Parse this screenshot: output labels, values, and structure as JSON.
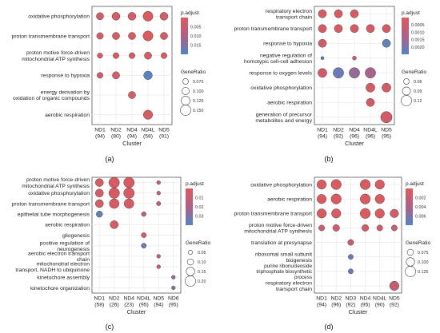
{
  "colors": {
    "high": "#e05a5a",
    "mid": "#b15f86",
    "low": "#4f86c6",
    "grid": "#ebebeb",
    "axis": "#555555"
  },
  "chart_data": [
    {
      "panel_label": "(a)",
      "type": "dot",
      "xlabel": "Cluster",
      "categories": [
        "ND1\n(94)",
        "ND2\n(80)",
        "ND4\n(94)",
        "ND4L\n(58)",
        "ND5\n(91)"
      ],
      "terms": [
        "oxidative phosphorylation",
        "proton transmembrane transport",
        "proton motive force-driven\nmitochondrial ATP synthesis",
        "response to hypoxia",
        "energy derivation by\noxidation of organic compounds",
        "aerobic respiration"
      ],
      "color_legend": {
        "title": "p.adjust",
        "ticks": [
          "0.005",
          "0.010",
          "0.015"
        ],
        "range": [
          0.0,
          0.02
        ]
      },
      "size_legend": {
        "title": "GeneRatio",
        "ticks": [
          "0.075",
          "0.100",
          "0.125",
          "0.150"
        ],
        "values": [
          0.075,
          0.1,
          0.125,
          0.15
        ]
      },
      "points": [
        {
          "x": 0,
          "y": 0,
          "ratio": 0.1,
          "p": 0.002
        },
        {
          "x": 1,
          "y": 0,
          "ratio": 0.11,
          "p": 0.002
        },
        {
          "x": 2,
          "y": 0,
          "ratio": 0.11,
          "p": 0.002
        },
        {
          "x": 3,
          "y": 0,
          "ratio": 0.14,
          "p": 0.001
        },
        {
          "x": 4,
          "y": 0,
          "ratio": 0.11,
          "p": 0.002
        },
        {
          "x": 0,
          "y": 1,
          "ratio": 0.09,
          "p": 0.002
        },
        {
          "x": 1,
          "y": 1,
          "ratio": 0.1,
          "p": 0.002
        },
        {
          "x": 2,
          "y": 1,
          "ratio": 0.1,
          "p": 0.002
        },
        {
          "x": 3,
          "y": 1,
          "ratio": 0.14,
          "p": 0.001
        },
        {
          "x": 4,
          "y": 1,
          "ratio": 0.1,
          "p": 0.002
        },
        {
          "x": 0,
          "y": 2,
          "ratio": 0.07,
          "p": 0.002
        },
        {
          "x": 1,
          "y": 2,
          "ratio": 0.08,
          "p": 0.002
        },
        {
          "x": 2,
          "y": 2,
          "ratio": 0.08,
          "p": 0.002
        },
        {
          "x": 3,
          "y": 2,
          "ratio": 0.1,
          "p": 0.002
        },
        {
          "x": 4,
          "y": 2,
          "ratio": 0.08,
          "p": 0.002
        },
        {
          "x": 0,
          "y": 3,
          "ratio": 0.08,
          "p": 0.004
        },
        {
          "x": 1,
          "y": 3,
          "ratio": 0.1,
          "p": 0.003
        },
        {
          "x": 3,
          "y": 3,
          "ratio": 0.12,
          "p": 0.019
        },
        {
          "x": 2,
          "y": 4,
          "ratio": 0.1,
          "p": 0.003
        },
        {
          "x": 3,
          "y": 5,
          "ratio": 0.13,
          "p": 0.002
        }
      ]
    },
    {
      "panel_label": "(b)",
      "type": "dot",
      "xlabel": "Cluster",
      "categories": [
        "ND1\n(94)",
        "ND2\n(92)",
        "ND4\n(96)",
        "ND4L\n(96)",
        "ND5\n(95)"
      ],
      "terms": [
        "respiratory electron\ntransport chain",
        "proton transmembrane transport",
        "response to hypoxia",
        "negative regulation of\nhomotypic cell-cell adhesion",
        "response to oxygen levels",
        "oxidative phosphorylation",
        "aerobic respiration",
        "generation of precursor\nmetabolites and energy"
      ],
      "color_legend": {
        "title": "p.adjust",
        "ticks": [
          "0.0005",
          "0.0010",
          "0.0015",
          "0.0020"
        ],
        "range": [
          0.0,
          0.0022
        ]
      },
      "size_legend": {
        "title": "GeneRatio",
        "ticks": [
          "0.06",
          "0.09",
          "0.12"
        ],
        "values": [
          0.06,
          0.09,
          0.12
        ]
      },
      "points": [
        {
          "x": 0,
          "y": 0,
          "ratio": 0.09,
          "p": 0.0002
        },
        {
          "x": 1,
          "y": 0,
          "ratio": 0.09,
          "p": 0.0002
        },
        {
          "x": 2,
          "y": 0,
          "ratio": 0.09,
          "p": 0.0002
        },
        {
          "x": 0,
          "y": 1,
          "ratio": 0.09,
          "p": 0.0002
        },
        {
          "x": 1,
          "y": 1,
          "ratio": 0.09,
          "p": 0.0002
        },
        {
          "x": 2,
          "y": 1,
          "ratio": 0.09,
          "p": 0.0002
        },
        {
          "x": 3,
          "y": 1,
          "ratio": 0.09,
          "p": 0.0002
        },
        {
          "x": 4,
          "y": 1,
          "ratio": 0.09,
          "p": 0.0002
        },
        {
          "x": 0,
          "y": 2,
          "ratio": 0.09,
          "p": 0.0003
        },
        {
          "x": 4,
          "y": 2,
          "ratio": 0.09,
          "p": 0.002
        },
        {
          "x": 0,
          "y": 3,
          "ratio": 0.03,
          "p": 0.0021
        },
        {
          "x": 2,
          "y": 3,
          "ratio": 0.04,
          "p": 0.0005
        },
        {
          "x": 0,
          "y": 4,
          "ratio": 0.1,
          "p": 0.0003
        },
        {
          "x": 1,
          "y": 4,
          "ratio": 0.12,
          "p": 0.0019
        },
        {
          "x": 2,
          "y": 4,
          "ratio": 0.12,
          "p": 0.0014
        },
        {
          "x": 3,
          "y": 4,
          "ratio": 0.12,
          "p": 0.0012
        },
        {
          "x": 3,
          "y": 5,
          "ratio": 0.1,
          "p": 0.0003
        },
        {
          "x": 4,
          "y": 5,
          "ratio": 0.1,
          "p": 0.0003
        },
        {
          "x": 3,
          "y": 6,
          "ratio": 0.09,
          "p": 0.0003
        },
        {
          "x": 4,
          "y": 7,
          "ratio": 0.13,
          "p": 0.0003
        }
      ]
    },
    {
      "panel_label": "(c)",
      "type": "dot",
      "xlabel": "Cluster",
      "categories": [
        "ND1\n(58)",
        "ND2\n(26)",
        "ND4\n(23)",
        "ND4L\n(95)",
        "ND5\n(94)",
        "ND6\n(95)"
      ],
      "terms": [
        "proton motive force-driven\nmitochondrial ATP synthesis",
        "oxidative phosphorylation",
        "proton transmembrane transport",
        "epithelial tube morphogenesis",
        "aerobic respiration",
        "gliogenesis",
        "positive regulation of\nneurogenesis",
        "aerobic electron transport\nchain",
        "mitochondrial electron\ntransport, NADH to ubiquinone",
        "kinetochore assembly",
        "kinetochore organization"
      ],
      "color_legend": {
        "title": "p.adjust",
        "ticks": [
          "0.01",
          "0.02",
          "0.03"
        ],
        "range": [
          0.0,
          0.035
        ]
      },
      "size_legend": {
        "title": "GeneRatio",
        "ticks": [
          "0.05",
          "0.10",
          "0.15",
          "0.20"
        ],
        "values": [
          0.05,
          0.1,
          0.15,
          0.2
        ]
      },
      "points": [
        {
          "x": 0,
          "y": 0,
          "ratio": 0.14,
          "p": 0.004
        },
        {
          "x": 1,
          "y": 0,
          "ratio": 0.2,
          "p": 0.003
        },
        {
          "x": 2,
          "y": 0,
          "ratio": 0.2,
          "p": 0.003
        },
        {
          "x": 4,
          "y": 0,
          "ratio": 0.04,
          "p": 0.01
        },
        {
          "x": 0,
          "y": 1,
          "ratio": 0.14,
          "p": 0.004
        },
        {
          "x": 1,
          "y": 1,
          "ratio": 0.2,
          "p": 0.003
        },
        {
          "x": 2,
          "y": 1,
          "ratio": 0.2,
          "p": 0.003
        },
        {
          "x": 4,
          "y": 1,
          "ratio": 0.04,
          "p": 0.012
        },
        {
          "x": 0,
          "y": 2,
          "ratio": 0.14,
          "p": 0.004
        },
        {
          "x": 1,
          "y": 2,
          "ratio": 0.18,
          "p": 0.003
        },
        {
          "x": 2,
          "y": 2,
          "ratio": 0.18,
          "p": 0.003
        },
        {
          "x": 4,
          "y": 2,
          "ratio": 0.05,
          "p": 0.012
        },
        {
          "x": 0,
          "y": 3,
          "ratio": 0.1,
          "p": 0.031
        },
        {
          "x": 3,
          "y": 3,
          "ratio": 0.06,
          "p": 0.012
        },
        {
          "x": 1,
          "y": 4,
          "ratio": 0.14,
          "p": 0.004
        },
        {
          "x": 3,
          "y": 5,
          "ratio": 0.07,
          "p": 0.004
        },
        {
          "x": 3,
          "y": 6,
          "ratio": 0.07,
          "p": 0.03
        },
        {
          "x": 4,
          "y": 7,
          "ratio": 0.04,
          "p": 0.01
        },
        {
          "x": 4,
          "y": 8,
          "ratio": 0.04,
          "p": 0.012
        },
        {
          "x": 5,
          "y": 9,
          "ratio": 0.04,
          "p": 0.022
        },
        {
          "x": 5,
          "y": 10,
          "ratio": 0.04,
          "p": 0.025
        }
      ]
    },
    {
      "panel_label": "(d)",
      "type": "dot",
      "xlabel": "Cluster",
      "categories": [
        "ND1\n(94)",
        "ND2\n(96)",
        "ND3\n(92)",
        "ND4\n(95)",
        "ND4L\n(90)",
        "ND5\n(92)"
      ],
      "terms": [
        "oxidative phosphorylation",
        "aerobic respiration",
        "proton transmembrane transport",
        "proton motive force-driven\nmitochondrial ATP synthesis",
        "translation at presynapse",
        "ribosomal small subunit\nbiogenesis",
        "purine ribonucleoside\ntriphosphate biosynthetic\nprocess",
        "respiratory electron\ntransport chain"
      ],
      "color_legend": {
        "title": "p.adjust",
        "ticks": [
          "0.002",
          "0.004",
          "0.006"
        ],
        "range": [
          0.0,
          0.007
        ]
      },
      "size_legend": {
        "title": "GeneRatio",
        "ticks": [
          "0.075",
          "0.100",
          "0.125"
        ],
        "values": [
          0.075,
          0.1,
          0.125
        ]
      },
      "points": [
        {
          "x": 0,
          "y": 0,
          "ratio": 0.11,
          "p": 0.0005
        },
        {
          "x": 1,
          "y": 0,
          "ratio": 0.12,
          "p": 0.0005
        },
        {
          "x": 3,
          "y": 0,
          "ratio": 0.12,
          "p": 0.0005
        },
        {
          "x": 4,
          "y": 0,
          "ratio": 0.11,
          "p": 0.0005
        },
        {
          "x": 0,
          "y": 1,
          "ratio": 0.11,
          "p": 0.0005
        },
        {
          "x": 1,
          "y": 1,
          "ratio": 0.12,
          "p": 0.0005
        },
        {
          "x": 3,
          "y": 1,
          "ratio": 0.12,
          "p": 0.0005
        },
        {
          "x": 4,
          "y": 1,
          "ratio": 0.11,
          "p": 0.0005
        },
        {
          "x": 0,
          "y": 2,
          "ratio": 0.11,
          "p": 0.0005
        },
        {
          "x": 1,
          "y": 2,
          "ratio": 0.11,
          "p": 0.0005
        },
        {
          "x": 3,
          "y": 2,
          "ratio": 0.12,
          "p": 0.0005
        },
        {
          "x": 4,
          "y": 2,
          "ratio": 0.11,
          "p": 0.0005
        },
        {
          "x": 5,
          "y": 2,
          "ratio": 0.1,
          "p": 0.001
        },
        {
          "x": 0,
          "y": 3,
          "ratio": 0.07,
          "p": 0.001
        },
        {
          "x": 1,
          "y": 3,
          "ratio": 0.08,
          "p": 0.001
        },
        {
          "x": 3,
          "y": 3,
          "ratio": 0.08,
          "p": 0.001
        },
        {
          "x": 4,
          "y": 3,
          "ratio": 0.07,
          "p": 0.001
        },
        {
          "x": 5,
          "y": 3,
          "ratio": 0.07,
          "p": 0.002
        },
        {
          "x": 2,
          "y": 4,
          "ratio": 0.07,
          "p": 0.002
        },
        {
          "x": 2,
          "y": 5,
          "ratio": 0.06,
          "p": 0.006
        },
        {
          "x": 2,
          "y": 6,
          "ratio": 0.06,
          "p": 0.006
        },
        {
          "x": 5,
          "y": 7,
          "ratio": 0.11,
          "p": 0.002
        }
      ]
    }
  ]
}
